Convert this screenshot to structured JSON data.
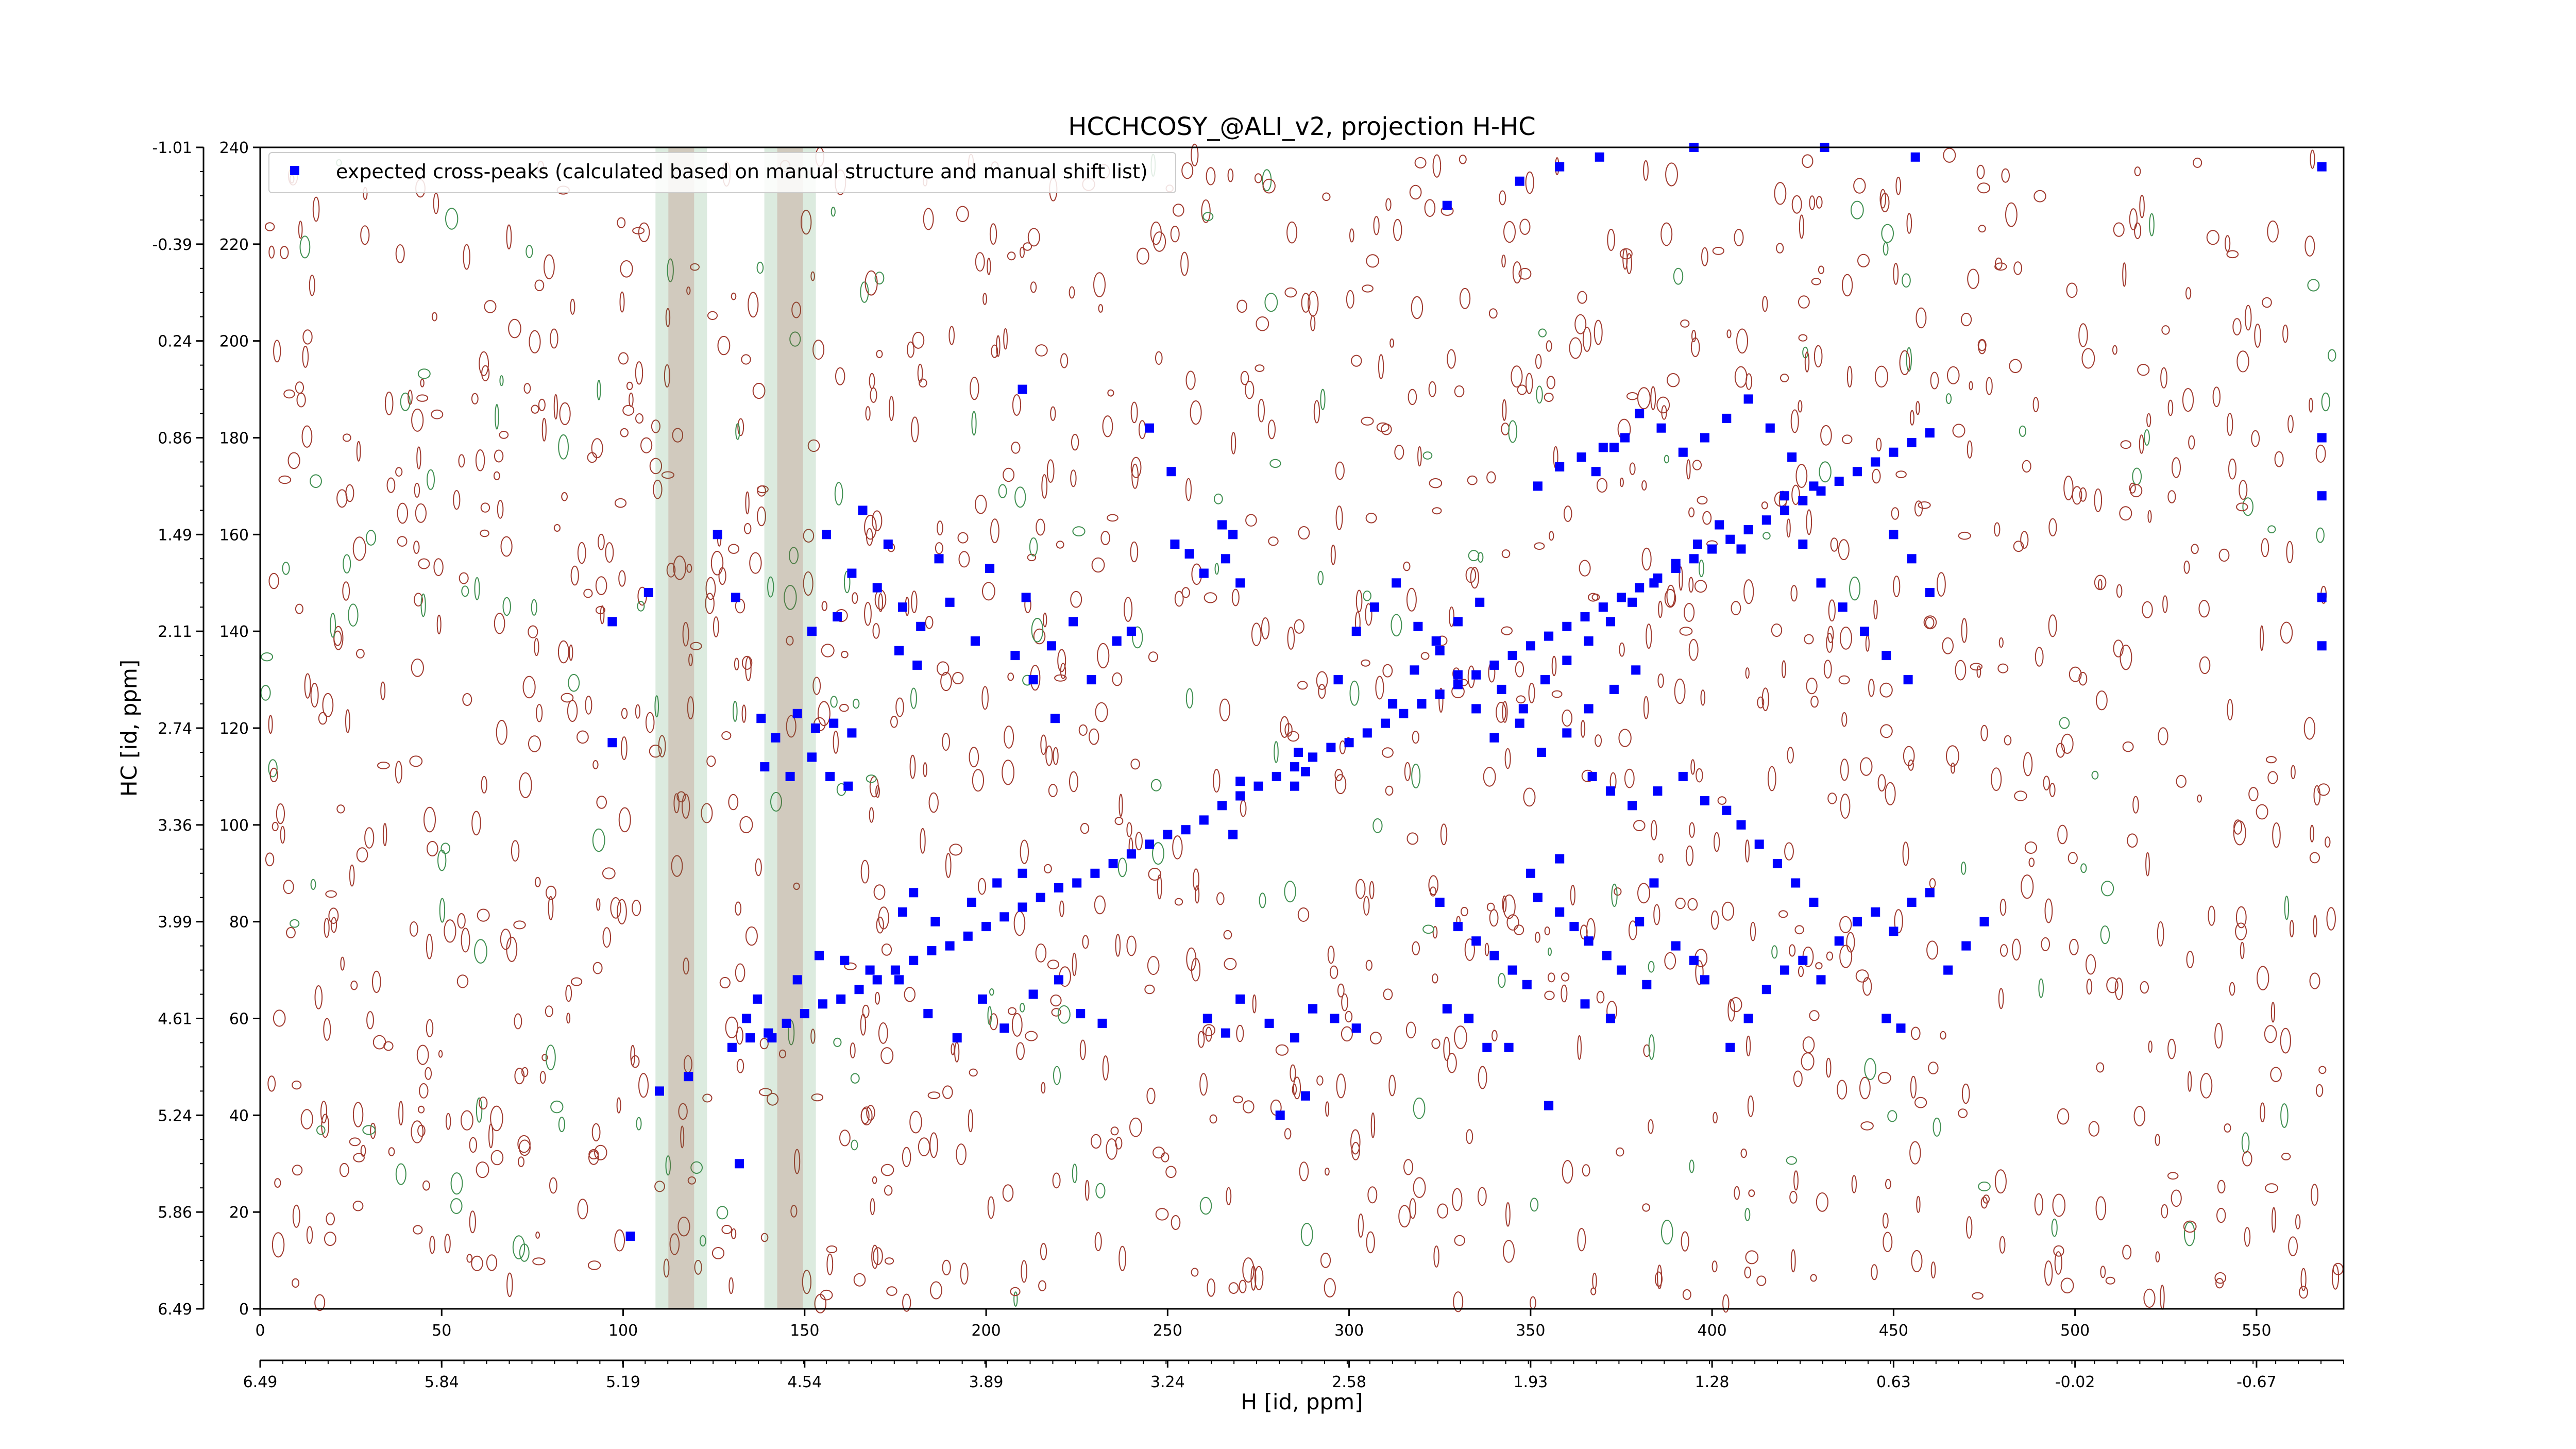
{
  "chart_data": {
    "type": "scatter",
    "title": "HCCHCOSY_@ALI_v2, projection H-HC",
    "xlabel": "",
    "ylabel": "HC [id, ppm]",
    "x2label": "H [id, ppm]",
    "xlim": [
      0,
      574
    ],
    "ylim": [
      0,
      240
    ],
    "x_ticks": [
      0,
      50,
      100,
      150,
      200,
      250,
      300,
      350,
      400,
      450,
      500,
      550
    ],
    "y_ticks": [
      0,
      20,
      40,
      60,
      80,
      100,
      120,
      140,
      160,
      180,
      200,
      220,
      240
    ],
    "x_ppm_tick_labels": [
      "6.49",
      "5.84",
      "5.19",
      "4.54",
      "3.89",
      "3.24",
      "2.58",
      "1.93",
      "1.28",
      "0.63",
      "-0.02",
      "-0.67"
    ],
    "y_ppm_tick_labels": [
      "6.49",
      "5.86",
      "5.24",
      "4.61",
      "3.99",
      "3.36",
      "2.74",
      "2.11",
      "1.49",
      "0.86",
      "0.24",
      "-0.39",
      "-1.01"
    ],
    "legend": {
      "placement": "top-left",
      "entries": [
        {
          "label": "expected cross-peaks (calculated based on manual structure and manual shift list)",
          "color": "#0000ff",
          "marker": "square"
        }
      ]
    },
    "grid": false,
    "series": [
      {
        "name": "expected cross-peaks (calculated based on manual structure and manual shift list)",
        "color": "#0000ff",
        "points": [
          [
            130,
            54
          ],
          [
            135,
            56
          ],
          [
            140,
            57
          ],
          [
            145,
            59
          ],
          [
            150,
            61
          ],
          [
            155,
            63
          ],
          [
            160,
            64
          ],
          [
            165,
            66
          ],
          [
            170,
            68
          ],
          [
            175,
            70
          ],
          [
            180,
            72
          ],
          [
            185,
            74
          ],
          [
            190,
            75
          ],
          [
            195,
            77
          ],
          [
            200,
            79
          ],
          [
            205,
            81
          ],
          [
            210,
            83
          ],
          [
            215,
            85
          ],
          [
            220,
            87
          ],
          [
            225,
            88
          ],
          [
            230,
            90
          ],
          [
            235,
            92
          ],
          [
            240,
            94
          ],
          [
            245,
            96
          ],
          [
            250,
            98
          ],
          [
            255,
            99
          ],
          [
            260,
            101
          ],
          [
            265,
            104
          ],
          [
            270,
            106
          ],
          [
            275,
            108
          ],
          [
            280,
            110
          ],
          [
            285,
            112
          ],
          [
            290,
            114
          ],
          [
            295,
            116
          ],
          [
            300,
            117
          ],
          [
            305,
            119
          ],
          [
            310,
            121
          ],
          [
            315,
            123
          ],
          [
            320,
            125
          ],
          [
            325,
            127
          ],
          [
            330,
            129
          ],
          [
            335,
            131
          ],
          [
            340,
            133
          ],
          [
            345,
            135
          ],
          [
            350,
            137
          ],
          [
            355,
            139
          ],
          [
            360,
            141
          ],
          [
            365,
            143
          ],
          [
            370,
            145
          ],
          [
            375,
            147
          ],
          [
            380,
            149
          ],
          [
            385,
            151
          ],
          [
            390,
            153
          ],
          [
            395,
            155
          ],
          [
            400,
            157
          ],
          [
            405,
            159
          ],
          [
            410,
            161
          ],
          [
            415,
            163
          ],
          [
            420,
            165
          ],
          [
            425,
            167
          ],
          [
            430,
            169
          ],
          [
            435,
            171
          ],
          [
            440,
            173
          ],
          [
            445,
            175
          ],
          [
            450,
            177
          ],
          [
            455,
            179
          ],
          [
            460,
            181
          ],
          [
            107,
            148
          ],
          [
            126,
            160
          ],
          [
            131,
            147
          ],
          [
            156,
            160
          ],
          [
            163,
            152
          ],
          [
            170,
            149
          ],
          [
            177,
            145
          ],
          [
            182,
            141
          ],
          [
            190,
            146
          ],
          [
            197,
            138
          ],
          [
            201,
            153
          ],
          [
            211,
            147
          ],
          [
            218,
            137
          ],
          [
            224,
            142
          ],
          [
            166,
            165
          ],
          [
            173,
            158
          ],
          [
            187,
            155
          ],
          [
            152,
            140
          ],
          [
            159,
            143
          ],
          [
            176,
            136
          ],
          [
            181,
            133
          ],
          [
            208,
            135
          ],
          [
            213,
            130
          ],
          [
            219,
            122
          ],
          [
            229,
            130
          ],
          [
            236,
            138
          ],
          [
            240,
            140
          ],
          [
            138,
            122
          ],
          [
            142,
            118
          ],
          [
            148,
            123
          ],
          [
            153,
            120
          ],
          [
            158,
            121
          ],
          [
            163,
            119
          ],
          [
            139,
            112
          ],
          [
            146,
            110
          ],
          [
            152,
            114
          ],
          [
            157,
            110
          ],
          [
            162,
            108
          ],
          [
            134,
            60
          ],
          [
            137,
            64
          ],
          [
            141,
            56
          ],
          [
            148,
            68
          ],
          [
            154,
            73
          ],
          [
            161,
            72
          ],
          [
            168,
            70
          ],
          [
            176,
            68
          ],
          [
            184,
            61
          ],
          [
            192,
            56
          ],
          [
            199,
            64
          ],
          [
            205,
            58
          ],
          [
            213,
            65
          ],
          [
            220,
            68
          ],
          [
            226,
            61
          ],
          [
            232,
            59
          ],
          [
            177,
            82
          ],
          [
            180,
            86
          ],
          [
            186,
            80
          ],
          [
            196,
            84
          ],
          [
            203,
            88
          ],
          [
            210,
            90
          ],
          [
            251,
            173
          ],
          [
            252,
            158
          ],
          [
            256,
            156
          ],
          [
            260,
            152
          ],
          [
            265,
            162
          ],
          [
            268,
            160
          ],
          [
            270,
            150
          ],
          [
            266,
            155
          ],
          [
            286,
            115
          ],
          [
            288,
            111
          ],
          [
            285,
            108
          ],
          [
            270,
            109
          ],
          [
            268,
            98
          ],
          [
            261,
            60
          ],
          [
            266,
            57
          ],
          [
            270,
            64
          ],
          [
            278,
            59
          ],
          [
            285,
            56
          ],
          [
            290,
            62
          ],
          [
            296,
            60
          ],
          [
            302,
            58
          ],
          [
            281,
            40
          ],
          [
            325,
            84
          ],
          [
            330,
            79
          ],
          [
            335,
            76
          ],
          [
            340,
            73
          ],
          [
            345,
            70
          ],
          [
            349,
            67
          ],
          [
            352,
            85
          ],
          [
            358,
            82
          ],
          [
            362,
            79
          ],
          [
            366,
            76
          ],
          [
            371,
            73
          ],
          [
            375,
            70
          ],
          [
            380,
            80
          ],
          [
            384,
            88
          ],
          [
            390,
            75
          ],
          [
            395,
            72
          ],
          [
            398,
            68
          ],
          [
            327,
            62
          ],
          [
            333,
            60
          ],
          [
            338,
            54
          ],
          [
            344,
            54
          ],
          [
            350,
            90
          ],
          [
            358,
            93
          ],
          [
            365,
            63
          ],
          [
            372,
            60
          ],
          [
            382,
            67
          ],
          [
            367,
            110
          ],
          [
            372,
            107
          ],
          [
            378,
            104
          ],
          [
            385,
            107
          ],
          [
            392,
            110
          ],
          [
            398,
            105
          ],
          [
            404,
            103
          ],
          [
            408,
            100
          ],
          [
            413,
            96
          ],
          [
            418,
            92
          ],
          [
            423,
            88
          ],
          [
            428,
            84
          ],
          [
            405,
            54
          ],
          [
            410,
            60
          ],
          [
            415,
            66
          ],
          [
            420,
            70
          ],
          [
            425,
            72
          ],
          [
            430,
            68
          ],
          [
            435,
            76
          ],
          [
            440,
            80
          ],
          [
            445,
            82
          ],
          [
            450,
            78
          ],
          [
            455,
            84
          ],
          [
            460,
            86
          ],
          [
            368,
            173
          ],
          [
            373,
            178
          ],
          [
            380,
            185
          ],
          [
            386,
            182
          ],
          [
            392,
            177
          ],
          [
            398,
            180
          ],
          [
            404,
            184
          ],
          [
            410,
            188
          ],
          [
            416,
            182
          ],
          [
            422,
            176
          ],
          [
            428,
            170
          ],
          [
            420,
            168
          ],
          [
            425,
            158
          ],
          [
            430,
            150
          ],
          [
            436,
            145
          ],
          [
            442,
            140
          ],
          [
            448,
            135
          ],
          [
            454,
            130
          ],
          [
            450,
            160
          ],
          [
            455,
            155
          ],
          [
            460,
            148
          ],
          [
            312,
            125
          ],
          [
            318,
            132
          ],
          [
            324,
            138
          ],
          [
            330,
            142
          ],
          [
            336,
            146
          ],
          [
            342,
            128
          ],
          [
            348,
            124
          ],
          [
            354,
            130
          ],
          [
            360,
            134
          ],
          [
            366,
            138
          ],
          [
            372,
            142
          ],
          [
            378,
            146
          ],
          [
            384,
            150
          ],
          [
            390,
            154
          ],
          [
            396,
            158
          ],
          [
            402,
            162
          ],
          [
            408,
            157
          ],
          [
            352,
            170
          ],
          [
            358,
            174
          ],
          [
            364,
            176
          ],
          [
            370,
            178
          ],
          [
            376,
            180
          ],
          [
            297,
            130
          ],
          [
            302,
            140
          ],
          [
            307,
            145
          ],
          [
            313,
            150
          ],
          [
            319,
            141
          ],
          [
            325,
            136
          ],
          [
            330,
            131
          ],
          [
            335,
            124
          ],
          [
            340,
            118
          ],
          [
            347,
            121
          ],
          [
            353,
            115
          ],
          [
            360,
            119
          ],
          [
            366,
            124
          ],
          [
            373,
            128
          ],
          [
            379,
            132
          ],
          [
            97,
            142
          ],
          [
            97,
            117
          ],
          [
            102,
            15
          ],
          [
            110,
            45
          ],
          [
            118,
            48
          ],
          [
            132,
            30
          ],
          [
            210,
            190
          ],
          [
            245,
            182
          ],
          [
            288,
            44
          ],
          [
            355,
            42
          ],
          [
            327,
            228
          ],
          [
            347,
            233
          ],
          [
            358,
            236
          ],
          [
            369,
            238
          ],
          [
            395,
            240
          ],
          [
            431,
            240
          ],
          [
            456,
            238
          ],
          [
            568,
            236
          ],
          [
            568,
            180
          ],
          [
            568,
            168
          ],
          [
            568,
            147
          ],
          [
            568,
            137
          ],
          [
            465,
            70
          ],
          [
            470,
            75
          ],
          [
            475,
            80
          ],
          [
            448,
            60
          ],
          [
            452,
            58
          ]
        ]
      }
    ]
  }
}
